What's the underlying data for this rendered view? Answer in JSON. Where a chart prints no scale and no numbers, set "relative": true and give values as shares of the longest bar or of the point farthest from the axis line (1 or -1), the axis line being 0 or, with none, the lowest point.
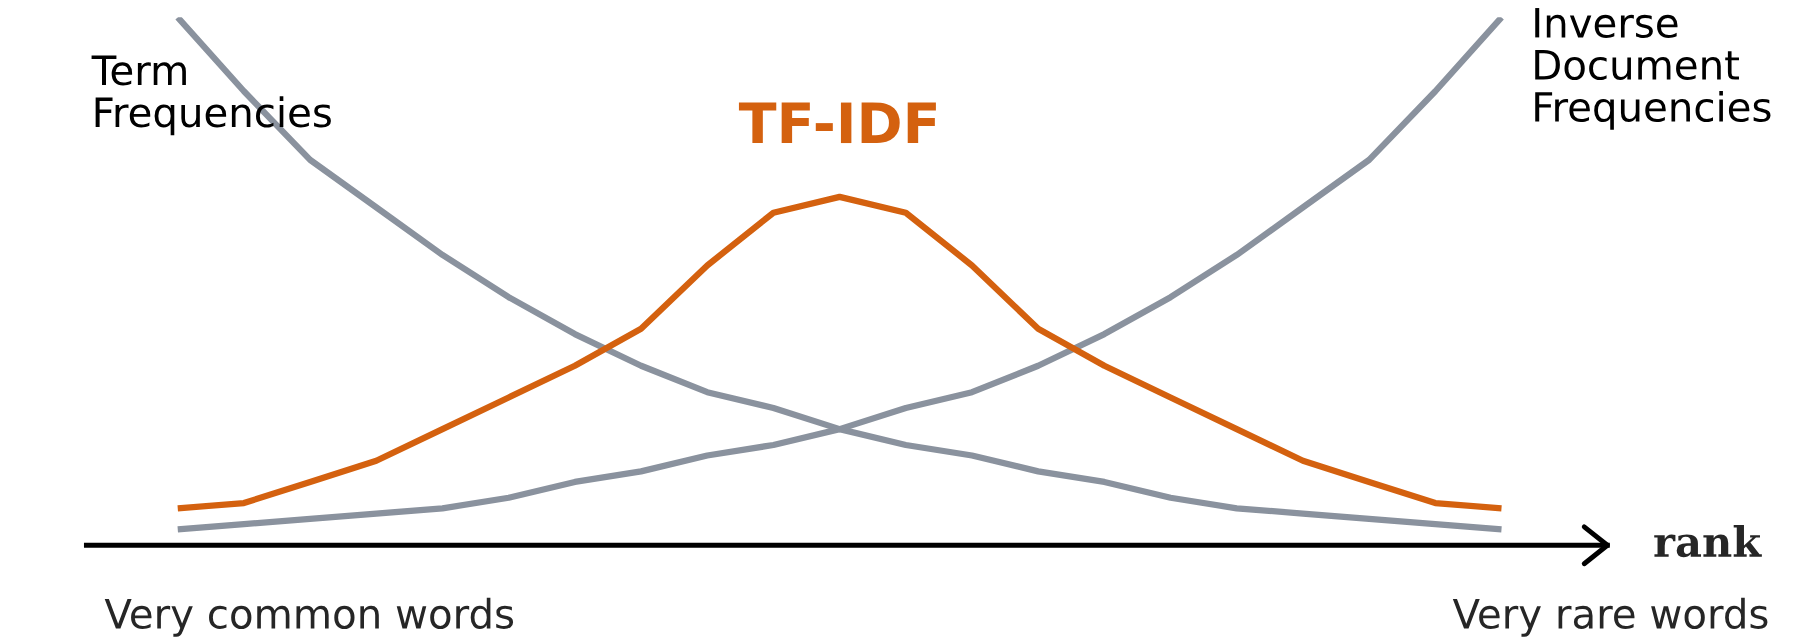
{
  "chart_data": {
    "type": "line",
    "relative": true,
    "xlabel": "rank",
    "categories": [
      null,
      null,
      null,
      null,
      null,
      null,
      null,
      null,
      null,
      null,
      null,
      null,
      null,
      null,
      null,
      null,
      null,
      null,
      null,
      null,
      null
    ],
    "series": [
      {
        "name": "Term\nFrequencies",
        "color": "#8a929e",
        "values": [
          1.0,
          0.86,
          0.73,
          0.64,
          0.55,
          0.47,
          0.4,
          0.34,
          0.29,
          0.26,
          0.22,
          0.19,
          0.17,
          0.14,
          0.12,
          0.09,
          0.07,
          0.06,
          0.05,
          0.04,
          0.03
        ]
      },
      {
        "name": "Inverse\nDocument\nFrequencies",
        "color": "#8a929e",
        "values": [
          0.03,
          0.04,
          0.05,
          0.06,
          0.07,
          0.09,
          0.12,
          0.14,
          0.17,
          0.19,
          0.22,
          0.26,
          0.29,
          0.34,
          0.4,
          0.47,
          0.55,
          0.64,
          0.73,
          0.86,
          1.0
        ]
      },
      {
        "name": "TF-IDF",
        "color": "#d4610f",
        "values": [
          0.07,
          0.08,
          0.12,
          0.16,
          0.22,
          0.28,
          0.34,
          0.41,
          0.53,
          0.63,
          0.66,
          0.63,
          0.53,
          0.41,
          0.34,
          0.28,
          0.22,
          0.16,
          0.12,
          0.08,
          0.07
        ]
      }
    ],
    "annotations": [
      "Very common words",
      "Very rare words"
    ],
    "marker": "none",
    "line_style": "solid"
  }
}
